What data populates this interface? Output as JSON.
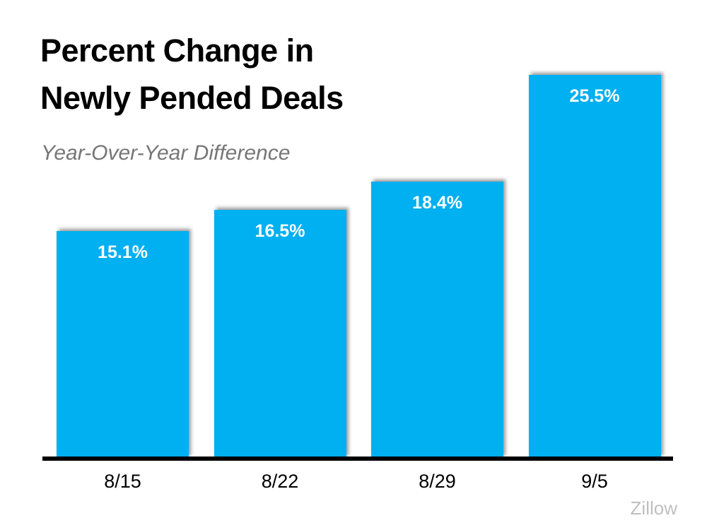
{
  "chart_data": {
    "type": "bar",
    "title": "Percent Change in Newly Pended Deals",
    "title_lines": [
      "Percent Change in",
      "Newly Pended Deals"
    ],
    "subtitle": "Year-Over-Year Difference",
    "categories": [
      "8/15",
      "8/22",
      "8/29",
      "9/5"
    ],
    "values": [
      15.1,
      16.5,
      18.4,
      25.5
    ],
    "value_labels": [
      "15.1%",
      "16.5%",
      "18.4%",
      "25.5%"
    ],
    "xlabel": "",
    "ylabel": "",
    "ylim": [
      0,
      28
    ],
    "grid": false,
    "legend": false,
    "y_axis_visible": false,
    "bar_color": "#00B0F0",
    "value_label_color": "#FFFFFF",
    "axis_line_color": "#000000",
    "source": "Zillow"
  }
}
